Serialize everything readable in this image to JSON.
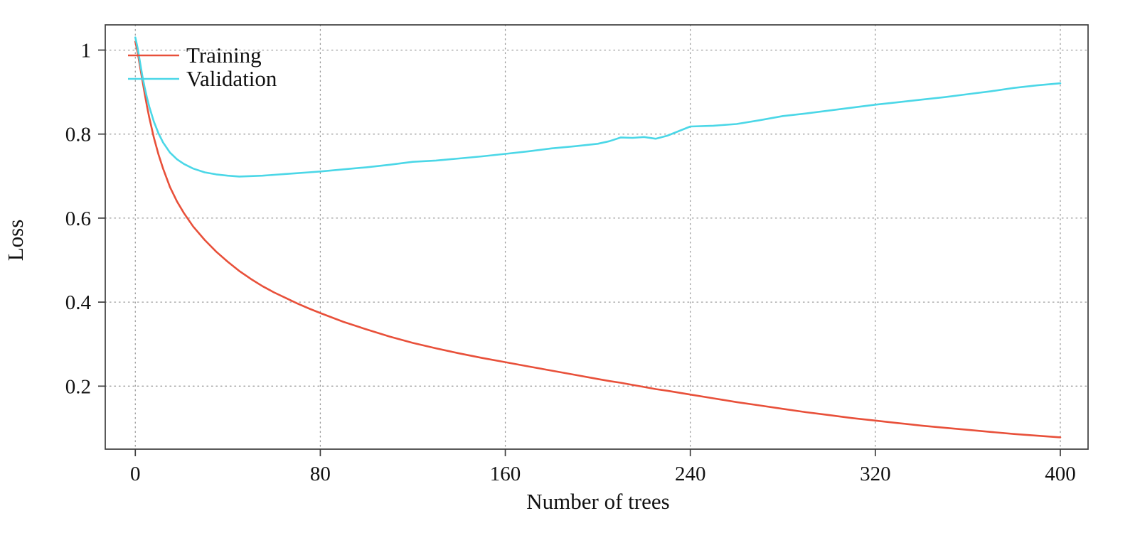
{
  "chart_data": {
    "type": "line",
    "title": "",
    "xlabel": "Number of trees",
    "ylabel": "Loss",
    "x_ticks": [
      0,
      80,
      160,
      240,
      320,
      400
    ],
    "y_ticks": [
      0.2,
      0.4,
      0.6,
      0.8,
      1
    ],
    "xlim": [
      -13,
      412
    ],
    "ylim": [
      0.05,
      1.06
    ],
    "grid": "dotted",
    "legend_position": "top-left",
    "x": [
      0,
      1,
      2,
      3,
      4,
      5,
      6,
      8,
      10,
      12,
      15,
      18,
      21,
      25,
      30,
      35,
      40,
      45,
      50,
      55,
      60,
      65,
      70,
      75,
      80,
      90,
      100,
      110,
      120,
      130,
      140,
      150,
      160,
      170,
      180,
      190,
      200,
      205,
      210,
      215,
      220,
      225,
      230,
      240,
      250,
      260,
      270,
      280,
      290,
      300,
      310,
      320,
      330,
      340,
      350,
      360,
      370,
      380,
      390,
      400
    ],
    "series": [
      {
        "name": "Training",
        "color": "#e8503a",
        "values": [
          1.02,
          0.995,
          0.962,
          0.93,
          0.898,
          0.868,
          0.84,
          0.792,
          0.752,
          0.718,
          0.674,
          0.64,
          0.612,
          0.58,
          0.548,
          0.52,
          0.496,
          0.474,
          0.455,
          0.438,
          0.423,
          0.41,
          0.397,
          0.385,
          0.374,
          0.353,
          0.335,
          0.318,
          0.303,
          0.29,
          0.278,
          0.267,
          0.257,
          0.247,
          0.237,
          0.227,
          0.217,
          0.212,
          0.208,
          0.203,
          0.198,
          0.193,
          0.189,
          0.18,
          0.171,
          0.162,
          0.154,
          0.146,
          0.138,
          0.131,
          0.124,
          0.118,
          0.112,
          0.106,
          0.101,
          0.096,
          0.091,
          0.086,
          0.082,
          0.078
        ]
      },
      {
        "name": "Validation",
        "color": "#4bd7e7",
        "values": [
          1.03,
          1.005,
          0.972,
          0.94,
          0.912,
          0.888,
          0.866,
          0.83,
          0.802,
          0.78,
          0.756,
          0.74,
          0.729,
          0.718,
          0.709,
          0.704,
          0.701,
          0.699,
          0.7,
          0.701,
          0.703,
          0.705,
          0.707,
          0.709,
          0.711,
          0.716,
          0.721,
          0.727,
          0.734,
          0.737,
          0.742,
          0.747,
          0.753,
          0.759,
          0.766,
          0.771,
          0.777,
          0.783,
          0.792,
          0.791,
          0.793,
          0.789,
          0.796,
          0.818,
          0.82,
          0.824,
          0.833,
          0.843,
          0.849,
          0.856,
          0.863,
          0.87,
          0.876,
          0.882,
          0.888,
          0.895,
          0.902,
          0.91,
          0.916,
          0.921
        ]
      }
    ]
  }
}
